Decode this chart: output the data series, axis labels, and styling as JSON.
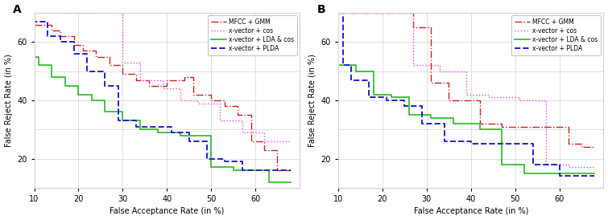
{
  "panel_A": {
    "mfcc_gmm": {
      "x": [
        10,
        14,
        14,
        16,
        16,
        19,
        19,
        21,
        21,
        24,
        24,
        27,
        27,
        30,
        30,
        33,
        33,
        36,
        36,
        40,
        40,
        44,
        44,
        46,
        46,
        50,
        50,
        53,
        53,
        56,
        56,
        59,
        59,
        62,
        62,
        65,
        65,
        68
      ],
      "y": [
        66,
        66,
        64,
        64,
        62,
        62,
        59,
        59,
        57,
        57,
        55,
        55,
        52,
        52,
        49,
        49,
        47,
        47,
        45,
        45,
        47,
        47,
        48,
        48,
        42,
        42,
        40,
        40,
        38,
        38,
        35,
        35,
        26,
        26,
        23,
        23,
        16,
        16
      ]
    },
    "xvec_cos": {
      "x": [
        10,
        30,
        30,
        34,
        34,
        39,
        39,
        43,
        43,
        47,
        47,
        52,
        52,
        57,
        57,
        62,
        62,
        68
      ],
      "y": [
        70,
        70,
        53,
        53,
        47,
        47,
        44,
        44,
        40,
        40,
        39,
        39,
        33,
        33,
        29,
        29,
        26,
        26
      ]
    },
    "xvec_lda_cos": {
      "x": [
        10,
        11,
        11,
        14,
        14,
        17,
        17,
        20,
        20,
        23,
        23,
        26,
        26,
        30,
        30,
        34,
        34,
        38,
        38,
        43,
        43,
        50,
        50,
        55,
        55,
        58,
        58,
        63,
        63,
        68
      ],
      "y": [
        55,
        55,
        52,
        52,
        48,
        48,
        45,
        45,
        42,
        42,
        40,
        40,
        36,
        36,
        33,
        33,
        30,
        30,
        29,
        29,
        28,
        28,
        17,
        17,
        16,
        16,
        16,
        16,
        12,
        12
      ]
    },
    "xvec_plda": {
      "x": [
        10,
        10,
        13,
        13,
        16,
        16,
        19,
        19,
        22,
        22,
        26,
        26,
        29,
        29,
        33,
        33,
        37,
        37,
        41,
        41,
        45,
        45,
        49,
        49,
        53,
        53,
        57,
        57,
        62,
        62,
        68
      ],
      "y": [
        68,
        67,
        67,
        62,
        62,
        60,
        60,
        56,
        56,
        50,
        50,
        45,
        45,
        33,
        33,
        31,
        31,
        31,
        31,
        29,
        29,
        26,
        26,
        20,
        20,
        19,
        19,
        16,
        16,
        16,
        16
      ]
    }
  },
  "panel_B": {
    "mfcc_gmm": {
      "x": [
        10,
        27,
        27,
        31,
        31,
        35,
        35,
        38,
        38,
        42,
        42,
        47,
        47,
        53,
        53,
        62,
        62,
        65,
        65,
        68
      ],
      "y": [
        70,
        70,
        65,
        65,
        46,
        46,
        40,
        40,
        40,
        40,
        32,
        32,
        31,
        31,
        31,
        31,
        25,
        25,
        24,
        24
      ]
    },
    "xvec_cos": {
      "x": [
        10,
        27,
        27,
        33,
        33,
        39,
        39,
        44,
        44,
        51,
        51,
        57,
        57,
        62,
        62,
        65,
        65,
        68
      ],
      "y": [
        70,
        70,
        52,
        52,
        50,
        50,
        42,
        42,
        41,
        41,
        40,
        40,
        18,
        18,
        17,
        17,
        17,
        17
      ]
    },
    "xvec_lda_cos": {
      "x": [
        10,
        14,
        14,
        18,
        18,
        22,
        22,
        26,
        26,
        31,
        31,
        36,
        36,
        42,
        42,
        47,
        47,
        52,
        52,
        57,
        57,
        62,
        62,
        68
      ],
      "y": [
        52,
        52,
        50,
        50,
        42,
        42,
        41,
        41,
        35,
        35,
        34,
        34,
        32,
        32,
        30,
        30,
        18,
        18,
        15,
        15,
        15,
        15,
        15,
        15
      ]
    },
    "xvec_plda": {
      "x": [
        10,
        11,
        11,
        13,
        13,
        17,
        17,
        21,
        21,
        25,
        25,
        29,
        29,
        34,
        34,
        40,
        40,
        46,
        46,
        54,
        54,
        60,
        60,
        64,
        64,
        68
      ],
      "y": [
        70,
        70,
        52,
        52,
        47,
        47,
        41,
        41,
        40,
        40,
        38,
        38,
        32,
        32,
        26,
        26,
        25,
        25,
        25,
        25,
        18,
        18,
        14,
        14,
        14,
        14
      ]
    }
  },
  "xlim": [
    10,
    70
  ],
  "ylim": [
    10,
    70
  ],
  "xticks": [
    10,
    20,
    30,
    40,
    50,
    60
  ],
  "xticklabels": [
    "10",
    "20",
    "30",
    "40",
    "50",
    "60"
  ],
  "yticks": [
    20,
    40,
    60
  ],
  "yticklabels": [
    "20",
    "40",
    "60"
  ],
  "xlabel": "False Acceptance Rate (in %)",
  "ylabel": "False Reject Rate (in %)",
  "colors": {
    "mfcc_gmm": "#cc2222",
    "xvec_cos": "#ee44ee",
    "xvec_lda_cos": "#22bb22",
    "xvec_plda": "#2222cc"
  },
  "labels": {
    "mfcc_gmm": "MFCC + GMM",
    "xvec_cos": "x-vector + cos",
    "xvec_lda_cos": "x-vector + LDA & cos",
    "xvec_plda": "x-vector + PLDA"
  },
  "linestyles": {
    "mfcc_gmm": "-.",
    "xvec_cos": ":",
    "xvec_lda_cos": "-",
    "xvec_plda": "--"
  },
  "linewidths": {
    "mfcc_gmm": 1.0,
    "xvec_cos": 1.0,
    "xvec_lda_cos": 1.2,
    "xvec_plda": 1.4
  },
  "grid_xticks": [
    20,
    30,
    40,
    50,
    60
  ],
  "grid_yticks": [
    20,
    30,
    40,
    50,
    60
  ]
}
